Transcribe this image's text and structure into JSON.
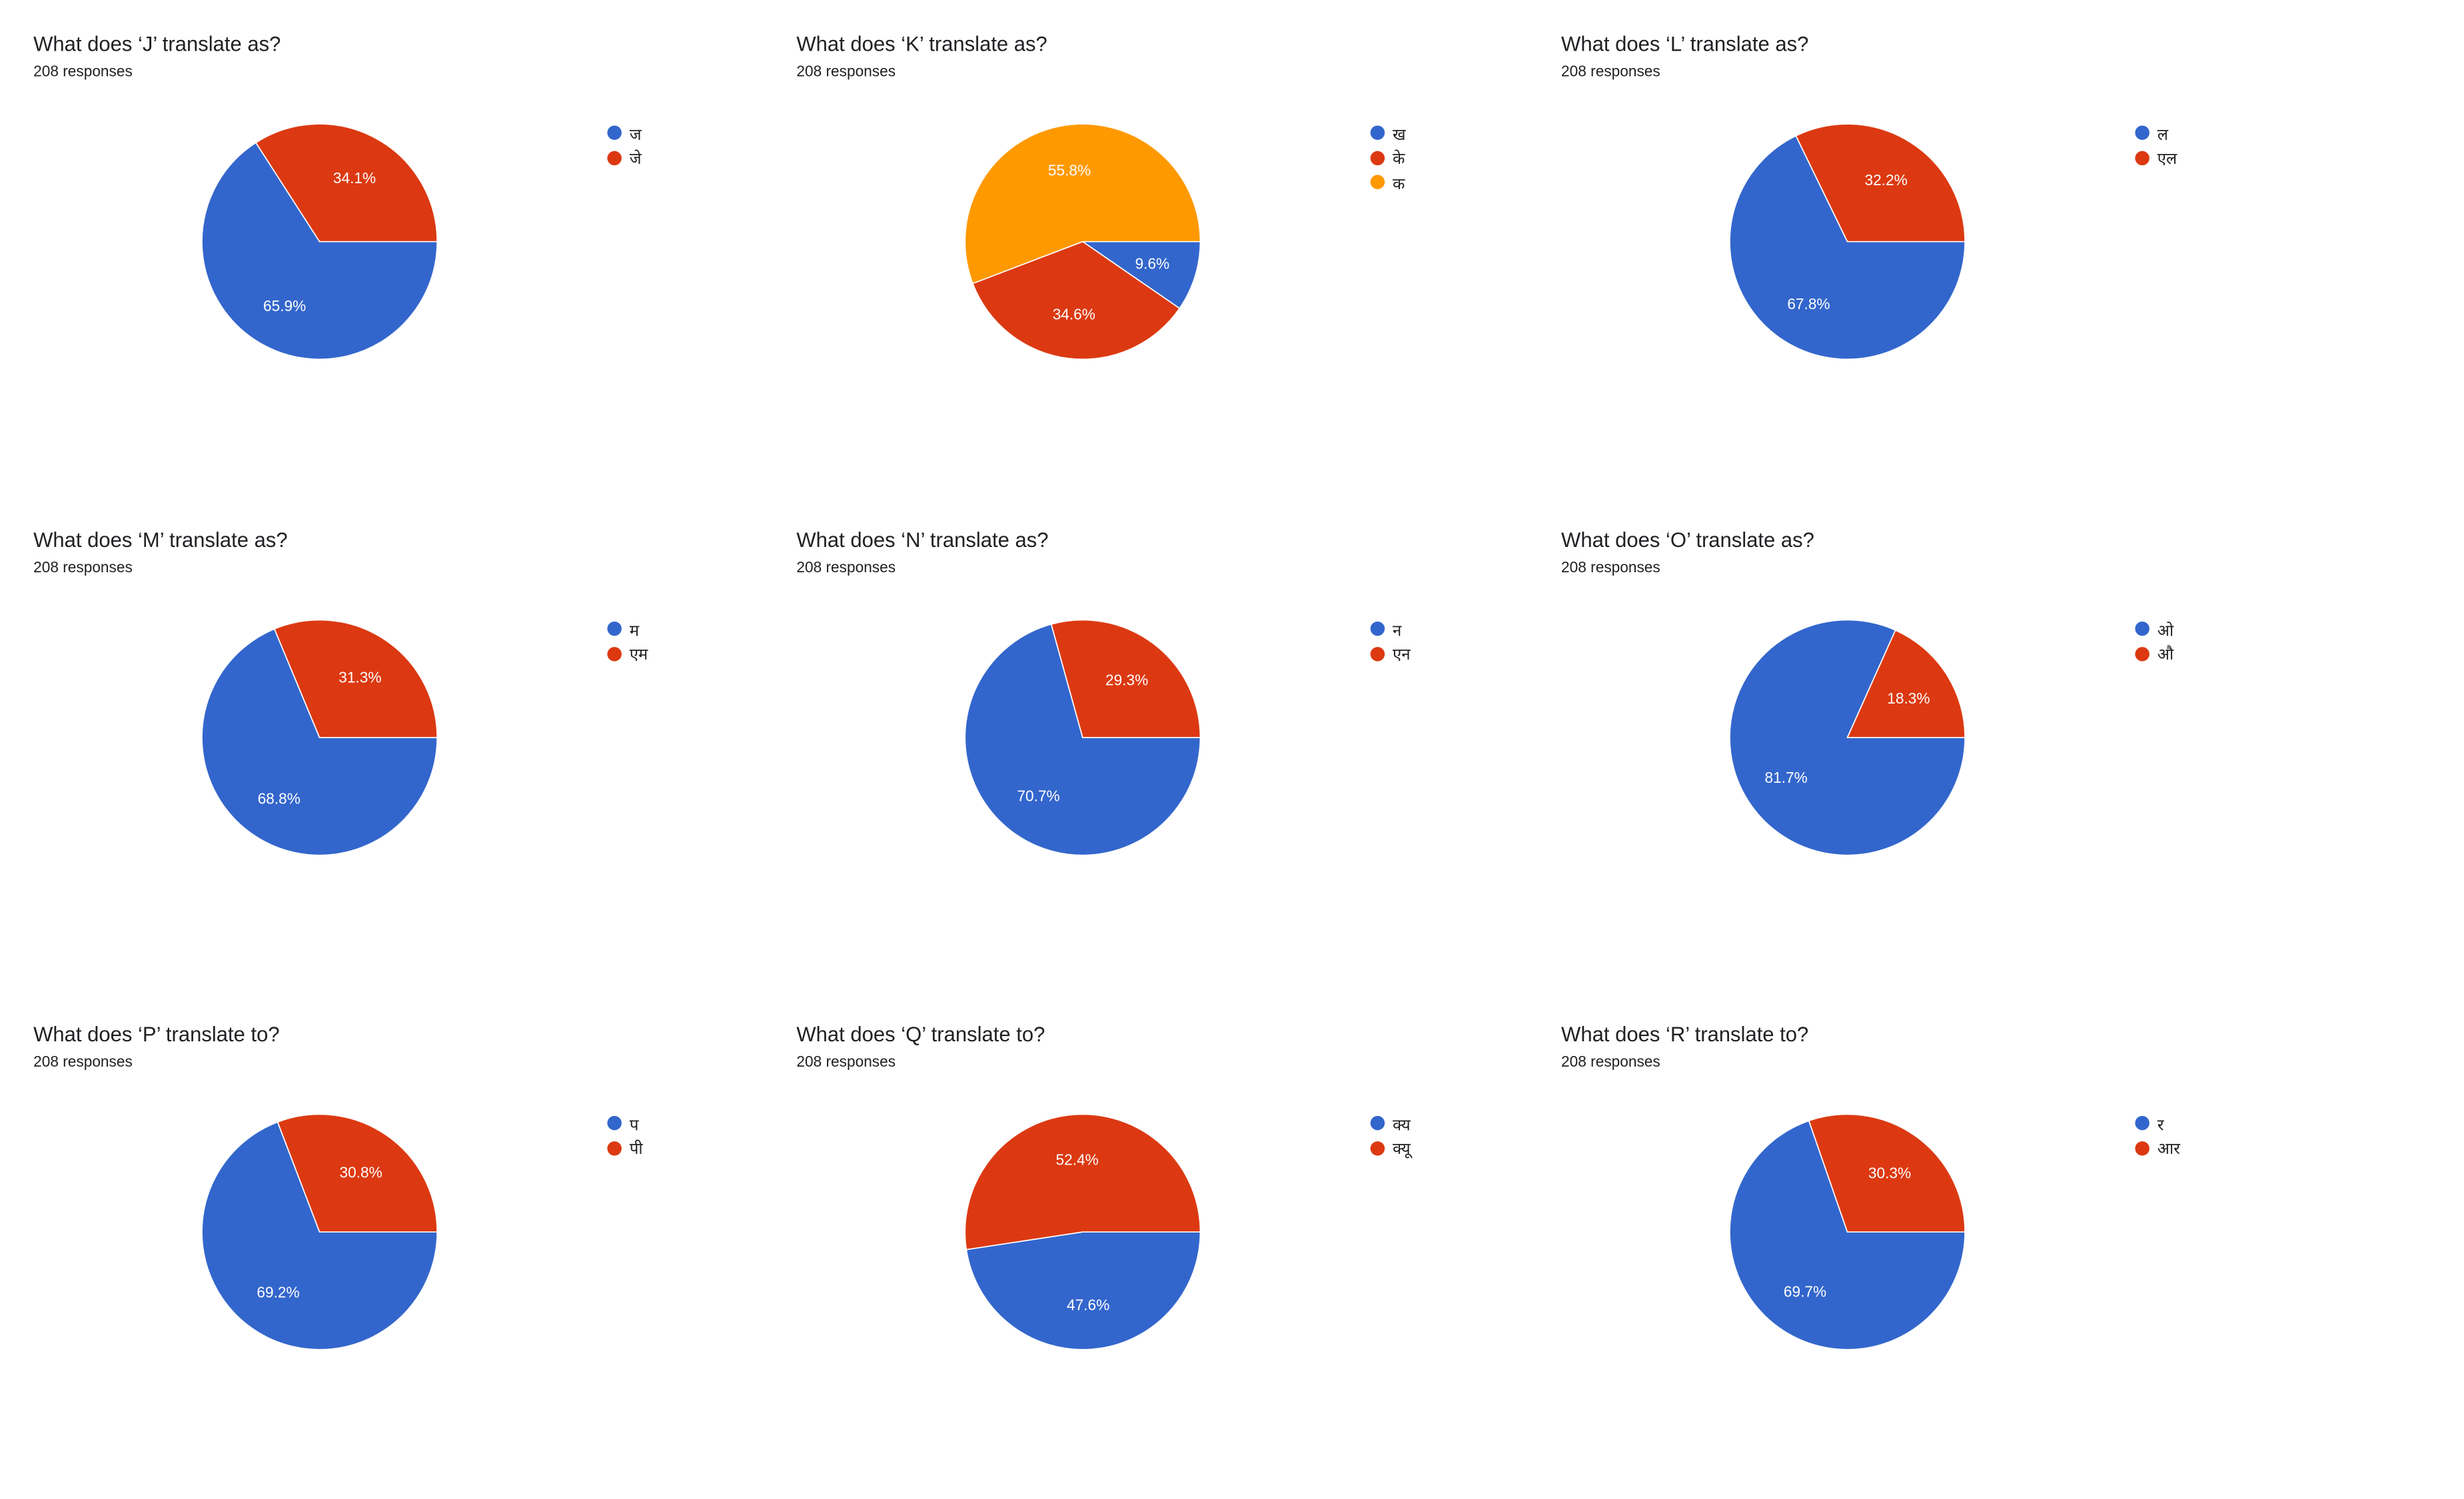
{
  "colors": {
    "blue": "#3366cc",
    "red": "#dc3912",
    "orange": "#ff9900"
  },
  "chart_data": [
    {
      "type": "pie",
      "title": "What does ‘J’ translate as?",
      "subtitle": "208 responses",
      "legend_position": "right",
      "slices": [
        {
          "label": "ज",
          "value": 65.9,
          "display": "65.9%",
          "color": "#3366cc"
        },
        {
          "label": "जे",
          "value": 34.1,
          "display": "34.1%",
          "color": "#dc3912"
        }
      ]
    },
    {
      "type": "pie",
      "title": "What does ‘K’ translate as?",
      "subtitle": "208 responses",
      "legend_position": "right",
      "slices": [
        {
          "label": "ख",
          "value": 9.6,
          "display": "9.6%",
          "color": "#3366cc"
        },
        {
          "label": "के",
          "value": 34.6,
          "display": "34.6%",
          "color": "#dc3912"
        },
        {
          "label": "क",
          "value": 55.8,
          "display": "55.8%",
          "color": "#ff9900"
        }
      ]
    },
    {
      "type": "pie",
      "title": "What does ‘L’ translate as?",
      "subtitle": "208 responses",
      "legend_position": "right",
      "slices": [
        {
          "label": "ल",
          "value": 67.8,
          "display": "67.8%",
          "color": "#3366cc"
        },
        {
          "label": "एल",
          "value": 32.2,
          "display": "32.2%",
          "color": "#dc3912"
        }
      ]
    },
    {
      "type": "pie",
      "title": "What does ‘M’ translate as?",
      "subtitle": "208 responses",
      "legend_position": "right",
      "slices": [
        {
          "label": "म",
          "value": 68.8,
          "display": "68.8%",
          "color": "#3366cc"
        },
        {
          "label": "एम",
          "value": 31.3,
          "display": "31.3%",
          "color": "#dc3912"
        }
      ]
    },
    {
      "type": "pie",
      "title": "What does ‘N’ translate as?",
      "subtitle": "208 responses",
      "legend_position": "right",
      "slices": [
        {
          "label": "न",
          "value": 70.7,
          "display": "70.7%",
          "color": "#3366cc"
        },
        {
          "label": "एन",
          "value": 29.3,
          "display": "29.3%",
          "color": "#dc3912"
        }
      ]
    },
    {
      "type": "pie",
      "title": "What does ‘O’ translate as?",
      "subtitle": "208 responses",
      "legend_position": "right",
      "slices": [
        {
          "label": "ओ",
          "value": 81.7,
          "display": "81.7%",
          "color": "#3366cc"
        },
        {
          "label": "औ",
          "value": 18.3,
          "display": "18.3%",
          "color": "#dc3912"
        }
      ]
    },
    {
      "type": "pie",
      "title": "What does ‘P’ translate to?",
      "subtitle": "208 responses",
      "legend_position": "right",
      "slices": [
        {
          "label": "प",
          "value": 69.2,
          "display": "69.2%",
          "color": "#3366cc"
        },
        {
          "label": "पी",
          "value": 30.8,
          "display": "30.8%",
          "color": "#dc3912"
        }
      ]
    },
    {
      "type": "pie",
      "title": "What does ‘Q’ translate to?",
      "subtitle": "208 responses",
      "legend_position": "right",
      "slices": [
        {
          "label": "क्य",
          "value": 47.6,
          "display": "47.6%",
          "color": "#3366cc"
        },
        {
          "label": "क्यू",
          "value": 52.4,
          "display": "52.4%",
          "color": "#dc3912"
        }
      ]
    },
    {
      "type": "pie",
      "title": "What does ‘R’ translate to?",
      "subtitle": "208 responses",
      "legend_position": "right",
      "slices": [
        {
          "label": "र",
          "value": 69.7,
          "display": "69.7%",
          "color": "#3366cc"
        },
        {
          "label": "आर",
          "value": 30.3,
          "display": "30.3%",
          "color": "#dc3912"
        }
      ]
    }
  ]
}
